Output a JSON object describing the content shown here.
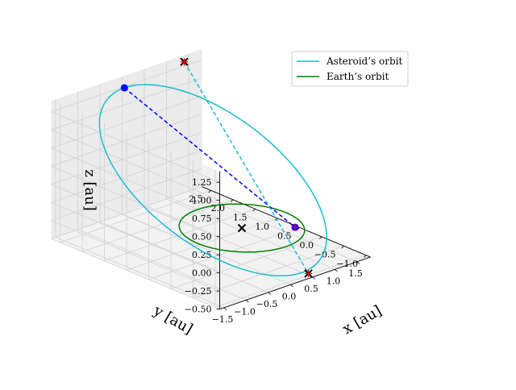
{
  "chart_data": {
    "type": "line3d",
    "title": "",
    "axes": {
      "x": {
        "label": "x [au]",
        "lim": [
          -1.6,
          1.8
        ],
        "ticks": [
          "−1.5",
          "−1.0",
          "−0.5",
          "0.0",
          "0.5",
          "1.0",
          "1.5"
        ],
        "tick_values": [
          -1.5,
          -1.0,
          -0.5,
          0.0,
          0.5,
          1.0,
          1.5
        ]
      },
      "y": {
        "label": "y [au]",
        "lim": [
          -1.1,
          2.7
        ],
        "ticks": [
          "−1.0",
          "−0.5",
          "0.0",
          "0.5",
          "1.0",
          "1.5",
          "2.0",
          "2.5"
        ],
        "tick_values": [
          -1.0,
          -0.5,
          0.0,
          0.5,
          1.0,
          1.5,
          2.0,
          2.5
        ]
      },
      "z": {
        "label": "z [au]",
        "lim": [
          -0.5,
          1.4
        ],
        "ticks": [
          "−0.50",
          "−0.25",
          "0.00",
          "0.25",
          "0.50",
          "0.75",
          "1.00",
          "1.25"
        ],
        "tick_values": [
          -0.5,
          -0.25,
          0.0,
          0.25,
          0.5,
          0.75,
          1.0,
          1.25
        ]
      }
    },
    "grid": true,
    "legend_position": "top-right",
    "series": [
      {
        "name": "Asteroid’s orbit",
        "kind": "ellipse3d",
        "color": "#17becf",
        "center": [
          0.2,
          0.85,
          0.4
        ],
        "u": [
          1.6,
          0.0,
          0.0
        ],
        "v": [
          -0.4,
          1.6,
          0.95
        ]
      },
      {
        "name": "Earth’s orbit",
        "kind": "ellipse3d",
        "color": "#008000",
        "center": [
          0.0,
          0.0,
          0.0
        ],
        "u": [
          1.0,
          0.0,
          0.0
        ],
        "v": [
          0.0,
          1.0,
          0.0
        ]
      }
    ],
    "segments": [
      {
        "color": "#0000ff",
        "style": "dashed",
        "from": [
          -0.2,
          2.45,
          1.35
        ],
        "to": [
          1.0,
          -0.2,
          -0.15
        ]
      },
      {
        "color": "#17becf",
        "style": "dashed",
        "from": [
          1.2,
          2.5,
          1.4
        ],
        "to": [
          0.55,
          -0.95,
          -0.5
        ]
      }
    ],
    "markers": [
      {
        "symbol": "circle",
        "color": "#0000ff",
        "point": [
          -0.2,
          2.45,
          1.35
        ]
      },
      {
        "symbol": "circle",
        "color": "#0000ff",
        "point": [
          1.0,
          -0.2,
          -0.15
        ]
      },
      {
        "symbol": "cross",
        "color": "#000000",
        "point": [
          0.0,
          0.0,
          0.0
        ]
      },
      {
        "symbol": "cross",
        "color": "#000000",
        "point": [
          1.2,
          2.5,
          1.4
        ]
      },
      {
        "symbol": "cross",
        "color": "#000000",
        "point": [
          0.55,
          -0.95,
          -0.5
        ]
      },
      {
        "symbol": "plus",
        "color": "#ff0000",
        "point": [
          1.2,
          2.5,
          1.4
        ]
      },
      {
        "symbol": "plus",
        "color": "#ff0000",
        "point": [
          0.55,
          -0.95,
          -0.5
        ]
      },
      {
        "symbol": "plus",
        "color": "#ff0000",
        "point": [
          1.0,
          -0.2,
          -0.15
        ]
      }
    ]
  },
  "legend": {
    "items": [
      {
        "label": "Asteroid’s orbit",
        "color": "#17becf"
      },
      {
        "label": "Earth’s orbit",
        "color": "#008000"
      }
    ]
  }
}
